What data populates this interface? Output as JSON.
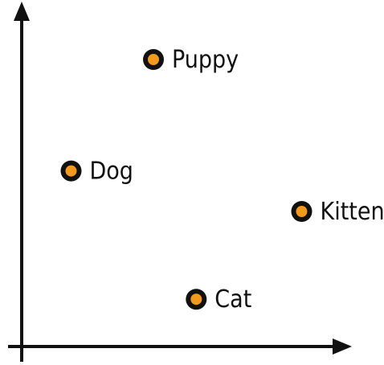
{
  "chart_data": {
    "type": "scatter",
    "title": "",
    "xlabel": "",
    "ylabel": "",
    "grid": false,
    "xlim": [
      0,
      10
    ],
    "ylim": [
      0,
      10
    ],
    "points": [
      {
        "label": "Puppy",
        "x": 4.0,
        "y": 8.5
      },
      {
        "label": "Dog",
        "x": 1.5,
        "y": 5.2
      },
      {
        "label": "Kitten",
        "x": 8.5,
        "y": 4.0
      },
      {
        "label": "Cat",
        "x": 5.3,
        "y": 1.4
      }
    ]
  },
  "colors": {
    "axis": "#111111",
    "marker_fill": "#f39a1e",
    "marker_ring": "#111111",
    "label": "#111111"
  }
}
